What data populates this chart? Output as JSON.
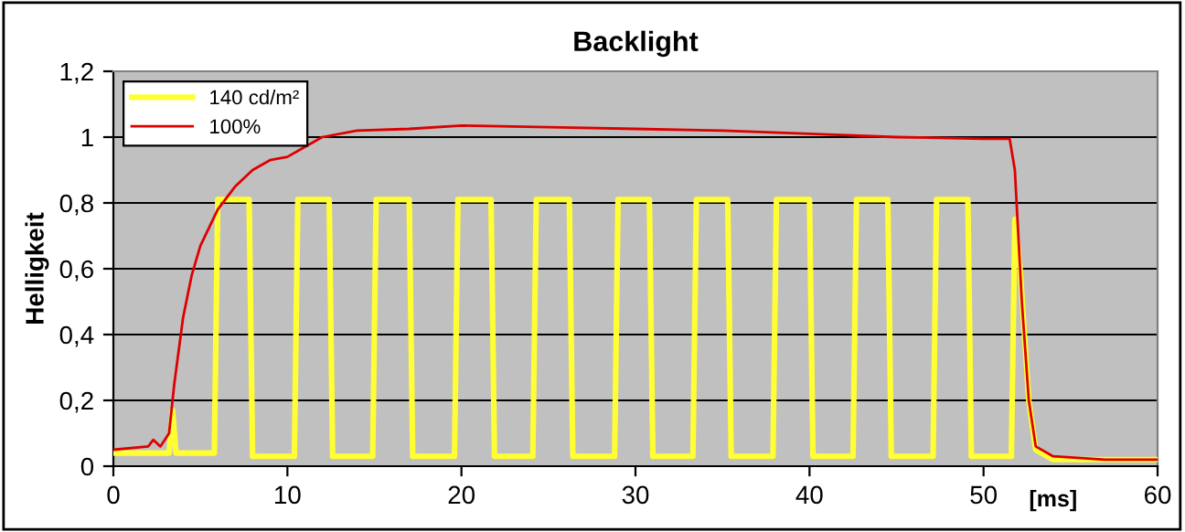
{
  "chart_data": {
    "type": "line",
    "title": "Backlight",
    "xlabel": "[ms]",
    "ylabel": "Helligkeit",
    "xlim": [
      0,
      60
    ],
    "xticks": [
      0,
      10,
      20,
      30,
      40,
      50,
      60
    ],
    "ylim": [
      0,
      1.2
    ],
    "yticks": [
      0,
      {
        "value": 0.2,
        "label": "0,2"
      },
      {
        "value": 0.4,
        "label": "0,4"
      },
      {
        "value": 0.6,
        "label": "0,6"
      },
      {
        "value": 0.8,
        "label": "0,8"
      },
      1,
      {
        "value": 1.2,
        "label": "1,2"
      }
    ],
    "grid": "y",
    "legend": "top left",
    "marker": "none",
    "line_style": "solid",
    "series": [
      {
        "name": "140 cd/m²",
        "color": "#ffff33",
        "x": [
          0,
          3.2,
          3.4,
          3.6,
          5.8,
          6.0,
          7.8,
          8.0,
          10.4,
          10.6,
          12.4,
          12.6,
          14.9,
          15.1,
          17.0,
          17.2,
          19.6,
          19.8,
          21.7,
          21.9,
          24.1,
          24.3,
          26.2,
          26.4,
          28.8,
          29.0,
          30.8,
          31.0,
          33.3,
          33.5,
          35.3,
          35.5,
          37.9,
          38.1,
          40.0,
          40.2,
          42.5,
          42.7,
          44.5,
          44.7,
          47.1,
          47.3,
          49.1,
          49.3,
          51.6,
          51.8,
          52.1,
          52.6,
          53.0,
          54.0,
          60
        ],
        "values": [
          0.04,
          0.04,
          0.17,
          0.04,
          0.04,
          0.81,
          0.81,
          0.03,
          0.03,
          0.81,
          0.81,
          0.03,
          0.03,
          0.81,
          0.81,
          0.03,
          0.03,
          0.81,
          0.81,
          0.03,
          0.03,
          0.81,
          0.81,
          0.03,
          0.03,
          0.81,
          0.81,
          0.03,
          0.03,
          0.81,
          0.81,
          0.03,
          0.03,
          0.81,
          0.81,
          0.03,
          0.03,
          0.81,
          0.81,
          0.03,
          0.03,
          0.81,
          0.81,
          0.03,
          0.03,
          0.75,
          0.6,
          0.2,
          0.05,
          0.02,
          0.02
        ]
      },
      {
        "name": "100%",
        "color": "#dd0000",
        "x": [
          0,
          2,
          2.3,
          2.7,
          3.2,
          3.5,
          4,
          4.5,
          5,
          6,
          7,
          8,
          9,
          10,
          11,
          12,
          14,
          17,
          20,
          25,
          30,
          35,
          40,
          45,
          50,
          51.5,
          51.8,
          52.2,
          52.6,
          53,
          54,
          57,
          60
        ],
        "values": [
          0.05,
          0.06,
          0.08,
          0.06,
          0.1,
          0.25,
          0.45,
          0.58,
          0.67,
          0.78,
          0.85,
          0.9,
          0.93,
          0.94,
          0.97,
          1.0,
          1.02,
          1.025,
          1.035,
          1.03,
          1.025,
          1.02,
          1.01,
          1.0,
          0.995,
          0.995,
          0.9,
          0.5,
          0.2,
          0.06,
          0.03,
          0.02,
          0.02
        ]
      }
    ]
  }
}
